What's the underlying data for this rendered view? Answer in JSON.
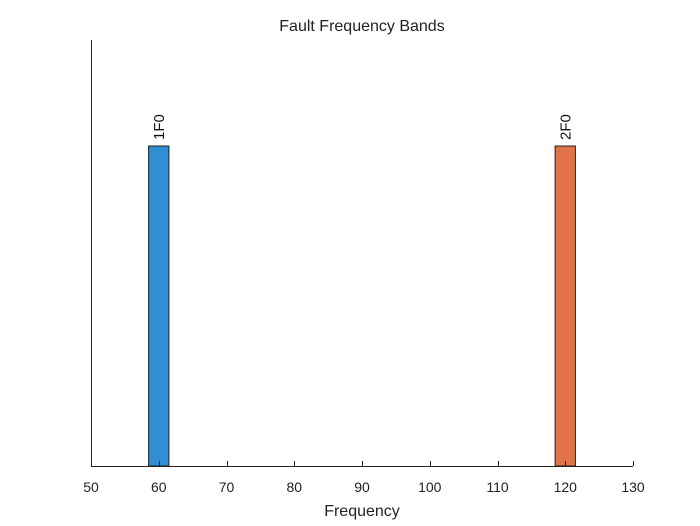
{
  "chart_data": {
    "type": "bar",
    "title": "Fault Frequency Bands",
    "xlabel": "Frequency",
    "ylabel": "",
    "xlim": [
      50,
      130
    ],
    "ylim": [
      0,
      1
    ],
    "xticks": [
      50,
      60,
      70,
      80,
      90,
      100,
      110,
      120,
      130
    ],
    "xtick_labels": [
      "50",
      "60",
      "70",
      "80",
      "90",
      "100",
      "110",
      "120",
      "130"
    ],
    "grid": false,
    "legend": "none",
    "bands": [
      {
        "label": "1F0",
        "x_start": 58.5,
        "x_end": 61.5,
        "height": 1,
        "color": "#2f8fd2"
      },
      {
        "label": "2F0",
        "x_start": 118.5,
        "x_end": 121.5,
        "height": 1,
        "color": "#e07347"
      }
    ]
  }
}
